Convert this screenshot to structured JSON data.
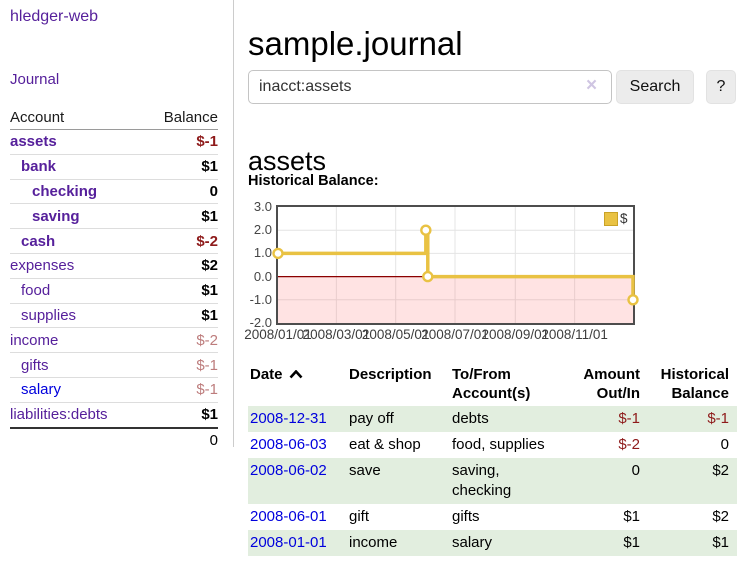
{
  "colors": {
    "link_purple": "#56209b",
    "link_blue": "#0000dd",
    "negative_strong": "#8e1a1a",
    "negative_soft": "#bd7c7c",
    "row_stripe": "#e2eedf",
    "series_gold": "#e9c243"
  },
  "sidebar": {
    "brand": "hledger-web",
    "journal_link": "Journal",
    "accounts_table": {
      "headers": {
        "account": "Account",
        "balance": "Balance"
      },
      "rows": [
        {
          "name": "assets",
          "depth": 0,
          "bold": true,
          "balance": "$-1",
          "balance_color": "#8e1a1a",
          "balance_bold": true
        },
        {
          "name": "bank",
          "depth": 1,
          "bold": true,
          "balance": "$1",
          "balance_color": "#000000",
          "balance_bold": true
        },
        {
          "name": "checking",
          "depth": 2,
          "bold": true,
          "balance": "0",
          "balance_color": "#000000",
          "balance_bold": true
        },
        {
          "name": "saving",
          "depth": 2,
          "bold": true,
          "balance": "$1",
          "balance_color": "#000000",
          "balance_bold": true
        },
        {
          "name": "cash",
          "depth": 1,
          "bold": true,
          "balance": "$-2",
          "balance_color": "#8e1a1a",
          "balance_bold": true
        },
        {
          "name": "expenses",
          "depth": 0,
          "bold": false,
          "balance": "$2",
          "balance_color": "#000000",
          "balance_bold": true
        },
        {
          "name": "food",
          "depth": 1,
          "bold": false,
          "balance": "$1",
          "balance_color": "#000000",
          "balance_bold": true
        },
        {
          "name": "supplies",
          "depth": 1,
          "bold": false,
          "balance": "$1",
          "balance_color": "#000000",
          "balance_bold": true
        },
        {
          "name": "income",
          "depth": 0,
          "bold": false,
          "balance": "$-2",
          "balance_color": "#bd7c7c",
          "balance_bold": false
        },
        {
          "name": "gifts",
          "depth": 1,
          "bold": false,
          "balance": "$-1",
          "balance_color": "#bd7c7c",
          "balance_bold": false
        },
        {
          "name": "salary",
          "depth": 1,
          "bold": false,
          "link_color": "#0000dd",
          "balance": "$-1",
          "balance_color": "#bd7c7c",
          "balance_bold": false
        },
        {
          "name": "liabilities:debts",
          "depth": 0,
          "bold": false,
          "balance": "$1",
          "balance_color": "#000000",
          "balance_bold": true
        }
      ],
      "total": "0"
    }
  },
  "main": {
    "title": "sample.journal",
    "search": {
      "value": "inacct:assets",
      "clear_icon": "×",
      "button_label": "Search",
      "help_label": "?"
    },
    "account_heading": "assets",
    "chart_label": "Historical Balance:"
  },
  "chart_data": {
    "type": "step-line",
    "title": "Historical Balance",
    "xlabel": "",
    "ylabel": "",
    "x_range": [
      "2008-01-01",
      "2008-12-31"
    ],
    "ylim": [
      -2,
      3
    ],
    "y_ticks": [
      {
        "v": 3,
        "label": "3.0"
      },
      {
        "v": 2,
        "label": "2.0"
      },
      {
        "v": 1,
        "label": "1.0"
      },
      {
        "v": 0,
        "label": "0.0"
      },
      {
        "v": -1,
        "label": "-1.0"
      },
      {
        "v": -2,
        "label": "-2.0"
      }
    ],
    "x_ticks": [
      {
        "date": "2008-01-01",
        "label": "2008/01/01"
      },
      {
        "date": "2008-03-01",
        "label": "2008/03/01"
      },
      {
        "date": "2008-05-01",
        "label": "2008/05/01"
      },
      {
        "date": "2008-07-01",
        "label": "2008/07/01"
      },
      {
        "date": "2008-09-01",
        "label": "2008/09/01"
      },
      {
        "date": "2008-11-01",
        "label": "2008/11/01"
      }
    ],
    "series": [
      {
        "name": "$",
        "color": "#e9c243",
        "points": [
          [
            "2008-01-01",
            1
          ],
          [
            "2008-06-01",
            2
          ],
          [
            "2008-06-03",
            0
          ],
          [
            "2008-12-31",
            -1
          ]
        ]
      }
    ],
    "grid": true,
    "grid_color": "#e4e4e4",
    "zero_line_color": "#8b0000",
    "negative_region_fill": "rgba(255,80,80,0.16)",
    "legend": {
      "label": "$",
      "position": "top-right"
    }
  },
  "register": {
    "sort": {
      "column": "Date",
      "direction": "asc"
    },
    "headers": {
      "date": "Date",
      "description": "Description",
      "accounts": "To/From Account(s)",
      "amount": "Amount Out/In",
      "balance": "Historical Balance"
    },
    "rows": [
      {
        "date": "2008-12-31",
        "description": "pay off",
        "accounts": "debts",
        "amount": "$-1",
        "amount_neg": true,
        "balance": "$-1",
        "balance_neg": true
      },
      {
        "date": "2008-06-03",
        "description": "eat & shop",
        "accounts": "food, supplies",
        "amount": "$-2",
        "amount_neg": true,
        "balance": "0",
        "balance_neg": false
      },
      {
        "date": "2008-06-02",
        "description": "save",
        "accounts": "saving, checking",
        "amount": "0",
        "amount_neg": false,
        "balance": "$2",
        "balance_neg": false
      },
      {
        "date": "2008-06-01",
        "description": "gift",
        "accounts": "gifts",
        "amount": "$1",
        "amount_neg": false,
        "balance": "$2",
        "balance_neg": false
      },
      {
        "date": "2008-01-01",
        "description": "income",
        "accounts": "salary",
        "amount": "$1",
        "amount_neg": false,
        "balance": "$1",
        "balance_neg": false
      }
    ]
  }
}
